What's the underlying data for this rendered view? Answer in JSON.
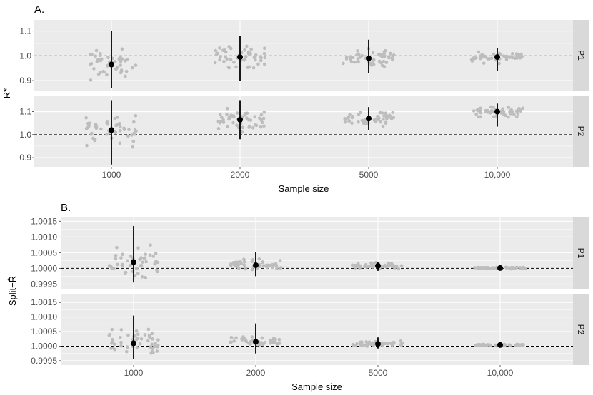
{
  "colors": {
    "panel_bg": "#ebebeb",
    "grid": "#ffffff",
    "strip_bg": "#d9d9d9",
    "raw_point": "#bdbdbd",
    "summary": "#000000"
  },
  "chart_data": [
    {
      "type": "scatter",
      "panel_label": "A.",
      "xlabel": "Sample size",
      "ylabel": "R*",
      "categories": [
        "1000",
        "2000",
        "5000",
        "10,000"
      ],
      "facets": [
        {
          "name": "P1",
          "ylim": [
            0.86,
            1.145
          ],
          "yticks": [
            0.9,
            1.0,
            1.1
          ],
          "ytick_labels": [
            "0.9",
            "1.0",
            "1.1"
          ],
          "reference_line": 1.0,
          "summary": [
            {
              "x": "1000",
              "mean": 0.965,
              "low": 0.87,
              "high": 1.1
            },
            {
              "x": "2000",
              "mean": 0.995,
              "low": 0.9,
              "high": 1.08
            },
            {
              "x": "5000",
              "mean": 0.99,
              "low": 0.93,
              "high": 1.065
            },
            {
              "x": "10,000",
              "mean": 0.995,
              "low": 0.94,
              "high": 1.03
            }
          ],
          "raw_spread": [
            0.06,
            0.045,
            0.035,
            0.022
          ]
        },
        {
          "name": "P2",
          "ylim": [
            0.86,
            1.17
          ],
          "yticks": [
            0.9,
            1.0,
            1.1
          ],
          "ytick_labels": [
            "0.9",
            "1.0",
            "1.1"
          ],
          "reference_line": 1.0,
          "summary": [
            {
              "x": "1000",
              "mean": 1.02,
              "low": 0.87,
              "high": 1.15
            },
            {
              "x": "2000",
              "mean": 1.065,
              "low": 0.98,
              "high": 1.15
            },
            {
              "x": "5000",
              "mean": 1.07,
              "low": 1.02,
              "high": 1.12
            },
            {
              "x": "10,000",
              "mean": 1.1,
              "low": 1.035,
              "high": 1.135
            }
          ],
          "raw_spread": [
            0.07,
            0.045,
            0.03,
            0.022
          ]
        }
      ]
    },
    {
      "type": "scatter",
      "panel_label": "B.",
      "xlabel": "Sample size",
      "ylabel": "Split−R̂",
      "categories": [
        "1000",
        "2000",
        "5000",
        "10,000"
      ],
      "facets": [
        {
          "name": "P1",
          "ylim": [
            0.99935,
            1.00162
          ],
          "yticks": [
            0.9995,
            1.0,
            1.0005,
            1.001,
            1.0015
          ],
          "ytick_labels": [
            "0.9995",
            "1.0000",
            "1.0005",
            "1.0010",
            "1.0015"
          ],
          "reference_line": 1.0,
          "summary": [
            {
              "x": "1000",
              "mean": 1.0002,
              "low": 0.99955,
              "high": 1.00135
            },
            {
              "x": "2000",
              "mean": 1.0001,
              "low": 0.99975,
              "high": 1.00052
            },
            {
              "x": "5000",
              "mean": 1.00008,
              "low": 0.99992,
              "high": 1.0002
            },
            {
              "x": "10,000",
              "mean": 1.00001,
              "low": 0.99997,
              "high": 1.00005
            }
          ],
          "raw_spread": [
            0.0005,
            0.00018,
            9e-05,
            3e-05
          ]
        },
        {
          "name": "P2",
          "ylim": [
            0.99935,
            1.0018
          ],
          "yticks": [
            0.9995,
            1.0,
            1.0005,
            1.001,
            1.0015
          ],
          "ytick_labels": [
            "0.9995",
            "1.0000",
            "1.0005",
            "1.0010",
            "1.0015"
          ],
          "reference_line": 1.0,
          "summary": [
            {
              "x": "1000",
              "mean": 1.0001,
              "low": 0.99955,
              "high": 1.00105
            },
            {
              "x": "2000",
              "mean": 1.00015,
              "low": 0.99975,
              "high": 1.00078
            },
            {
              "x": "5000",
              "mean": 1.00008,
              "low": 0.99992,
              "high": 1.0003
            },
            {
              "x": "10,000",
              "mean": 1.00004,
              "low": 0.99999,
              "high": 1.00008
            }
          ],
          "raw_spread": [
            0.00045,
            0.00018,
            0.0001,
            3e-05
          ]
        }
      ]
    }
  ]
}
